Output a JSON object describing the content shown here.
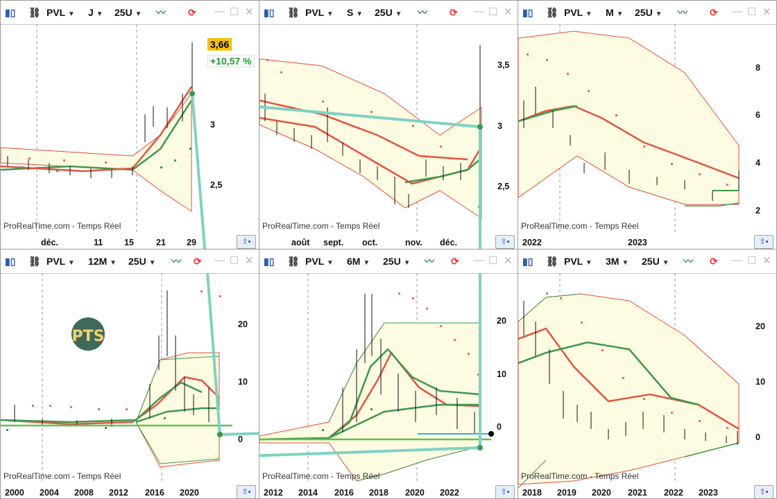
{
  "panels": [
    {
      "id": "p1",
      "ticker": "PVL",
      "period": "J",
      "units": "25U",
      "xlabels": [
        "déc.",
        "11",
        "15",
        "21",
        "29"
      ],
      "ylabels": [
        "3",
        "2,5"
      ],
      "watermark": "ProRealTime.com - Temps Réel",
      "price": "3,66",
      "change": "+10,57 %"
    },
    {
      "id": "p2",
      "ticker": "PVL",
      "period": "S",
      "units": "25U",
      "xlabels": [
        "août",
        "sept.",
        "oct.",
        "nov.",
        "déc."
      ],
      "ylabels": [
        "3,5",
        "3",
        "2,5"
      ],
      "watermark": "ProRealTime.com - Temps Réel"
    },
    {
      "id": "p3",
      "ticker": "PVL",
      "period": "M",
      "units": "25U",
      "xlabels": [
        "2022",
        "2023"
      ],
      "ylabels": [
        "8",
        "6",
        "4",
        "2"
      ],
      "watermark": "ProRealTime.com - Temps Réel"
    },
    {
      "id": "p4",
      "ticker": "PVL",
      "period": "12M",
      "units": "25U",
      "xlabels": [
        "2000",
        "2004",
        "2008",
        "2012",
        "2016",
        "2020"
      ],
      "ylabels": [
        "20",
        "10",
        "0"
      ],
      "watermark": "ProRealTime.com - Temps Réel",
      "logo": "PTS"
    },
    {
      "id": "p5",
      "ticker": "PVL",
      "period": "6M",
      "units": "25U",
      "xlabels": [
        "2012",
        "2014",
        "2016",
        "2018",
        "2020",
        "2022"
      ],
      "ylabels": [
        "20",
        "10",
        "0"
      ],
      "watermark": "ProRealTime.com - Temps Réel"
    },
    {
      "id": "p6",
      "ticker": "PVL",
      "period": "3M",
      "units": "25U",
      "xlabels": [
        "2018",
        "2019",
        "2020",
        "2021",
        "2022",
        "2023"
      ],
      "ylabels": [
        "20",
        "10",
        "0"
      ],
      "watermark": "ProRealTime.com - Temps Réel"
    }
  ],
  "colors": {
    "band_fill": "#fdfbe2",
    "band_line": "#e94b3c",
    "green": "#3a9a4a",
    "red_ma": "#e6533e",
    "sar": "#f26a5a",
    "link": "#7cd3c3",
    "hline_green": "#5fc24f",
    "hline_blue": "#3aa8e8"
  },
  "icons": [
    "candlestick-icon",
    "link-icon",
    "indicator-icon",
    "refresh-icon",
    "minimize-icon",
    "maximize-icon",
    "close-icon",
    "scroll-right-icon"
  ]
}
